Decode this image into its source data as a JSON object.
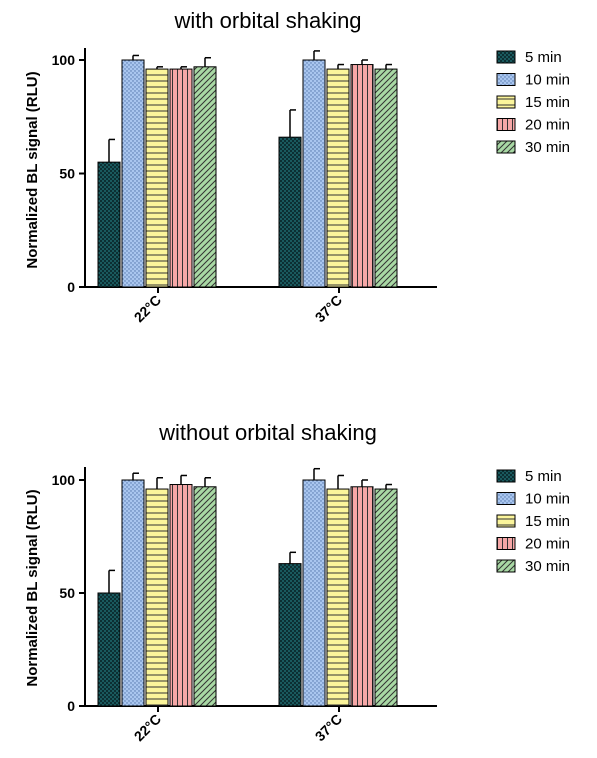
{
  "chart_data": [
    {
      "type": "bar",
      "title": "with orbital shaking",
      "ylabel": "Normalized BL signal (RLU)",
      "xlabel": "",
      "ylim": [
        0,
        105
      ],
      "yticks": [
        "0",
        "50",
        "100"
      ],
      "categories": [
        "22°C",
        "37°C"
      ],
      "legend_position": "right",
      "series": [
        {
          "name": "5 min",
          "values": [
            55,
            66
          ],
          "errors": [
            10,
            12
          ],
          "color": "#1a5a5e",
          "pattern": "checker"
        },
        {
          "name": "10 min",
          "values": [
            100,
            100
          ],
          "errors": [
            2,
            4
          ],
          "color": "#a9c6ef",
          "pattern": "dots"
        },
        {
          "name": "15 min",
          "values": [
            96,
            96
          ],
          "errors": [
            1,
            2
          ],
          "color": "#fbf59b",
          "pattern": "hlines"
        },
        {
          "name": "20 min",
          "values": [
            96,
            98
          ],
          "errors": [
            1,
            2
          ],
          "color": "#f6a7a7",
          "pattern": "vlines"
        },
        {
          "name": "30 min",
          "values": [
            97,
            96
          ],
          "errors": [
            4,
            2
          ],
          "color": "#a8d8a4",
          "pattern": "diag"
        }
      ]
    },
    {
      "type": "bar",
      "title": "without orbital shaking",
      "ylabel": "Normalized BL signal (RLU)",
      "xlabel": "",
      "ylim": [
        0,
        105
      ],
      "yticks": [
        "0",
        "50",
        "100"
      ],
      "categories": [
        "22°C",
        "37°C"
      ],
      "legend_position": "right",
      "series": [
        {
          "name": "5 min",
          "values": [
            50,
            63
          ],
          "errors": [
            10,
            5
          ],
          "color": "#1a5a5e",
          "pattern": "checker"
        },
        {
          "name": "10 min",
          "values": [
            100,
            100
          ],
          "errors": [
            3,
            5
          ],
          "color": "#a9c6ef",
          "pattern": "dots"
        },
        {
          "name": "15 min",
          "values": [
            96,
            96
          ],
          "errors": [
            5,
            6
          ],
          "color": "#fbf59b",
          "pattern": "hlines"
        },
        {
          "name": "20 min",
          "values": [
            98,
            97
          ],
          "errors": [
            4,
            3
          ],
          "color": "#f6a7a7",
          "pattern": "vlines"
        },
        {
          "name": "30 min",
          "values": [
            97,
            96
          ],
          "errors": [
            4,
            2
          ],
          "color": "#a8d8a4",
          "pattern": "diag"
        }
      ]
    }
  ]
}
